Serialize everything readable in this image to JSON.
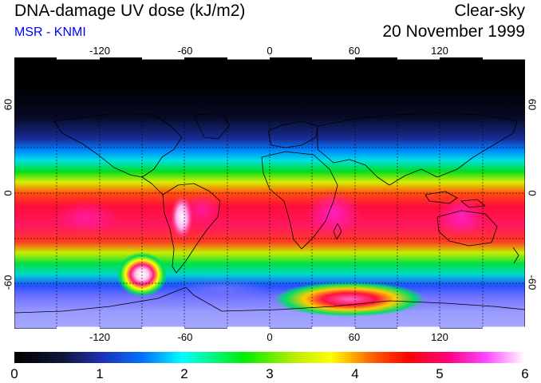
{
  "header": {
    "title": "DNA-damage UV dose (kJ/m2)",
    "subtitle": "MSR - KNMI",
    "subtitle_color": "#0000ff",
    "condition": "Clear-sky",
    "date": "20 November 1999"
  },
  "map": {
    "lon_range": [
      -180,
      180
    ],
    "lat_range": [
      -90,
      90
    ],
    "lon_ticks": [
      "-120",
      "-60",
      "0",
      "60",
      "120"
    ],
    "lat_ticks": [
      "60",
      "0",
      "-60"
    ],
    "grid": "dotted 30-degree graticule"
  },
  "colorbar": {
    "labels": [
      "0",
      "1",
      "2",
      "3",
      "4",
      "5",
      "6"
    ],
    "colors": [
      "#000000",
      "#1f2fb4",
      "#00ffff",
      "#00ee00",
      "#ffff00",
      "#ff0000",
      "#ff00aa",
      "#ffffff"
    ]
  }
}
